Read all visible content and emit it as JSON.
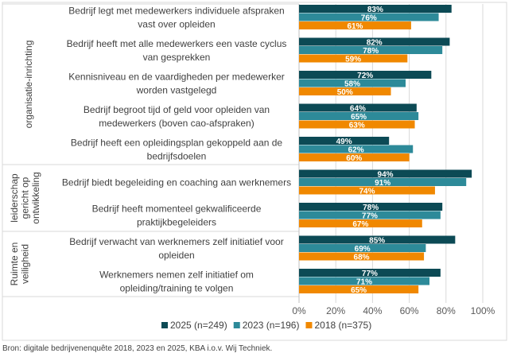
{
  "chart_data": {
    "type": "bar",
    "orientation": "horizontal",
    "groups": [
      {
        "label": "organisatie-inrichting",
        "items": [
          0,
          1,
          2,
          3,
          4
        ]
      },
      {
        "label_lines": [
          "leiderschap",
          "gericht op",
          "ontwikkeling"
        ],
        "label": "leiderschap gericht op ontwikkeling",
        "items": [
          5,
          6
        ]
      },
      {
        "label_lines": [
          "Ruimte en",
          "veiligheid"
        ],
        "label": "Ruimte en veiligheid",
        "items": [
          7,
          8
        ]
      }
    ],
    "categories": [
      [
        "Bedrijf legt met medewerkers individuele afspraken",
        "vast over opleiden"
      ],
      [
        "Bedrijf heeft met alle medewerkers een vaste cyclus",
        "van gesprekken"
      ],
      [
        "Kennisniveau en de vaardigheden per medewerker",
        "worden vastgelegd"
      ],
      [
        "Bedrijf begroot tijd of geld voor opleiden van",
        "medewerkers (boven cao-afspraken)"
      ],
      [
        "Bedrijf heeft een opleidingsplan gekoppeld aan de",
        "bedrijfsdoelen"
      ],
      [
        "Bedrijf biedt begeleiding en coaching aan werknemers"
      ],
      [
        "Bedrijf heeft momenteel gekwalificeerde",
        "praktijkbegeleiders"
      ],
      [
        "Bedrijf verwacht van werknemers zelf initiatief voor",
        "opleiden"
      ],
      [
        "Werknemers nemen zelf initiatief om",
        "opleiding/training te volgen"
      ]
    ],
    "series": [
      {
        "name": "2025 (n=249)",
        "color": "#0c4a55",
        "values": [
          83,
          82,
          72,
          64,
          49,
          94,
          78,
          85,
          77
        ]
      },
      {
        "name": "2023 (n=196)",
        "color": "#2d8a99",
        "values": [
          76,
          78,
          58,
          65,
          62,
          91,
          77,
          69,
          71
        ]
      },
      {
        "name": "2018 (n=375)",
        "color": "#f08800",
        "values": [
          61,
          59,
          50,
          63,
          60,
          74,
          67,
          68,
          65
        ]
      }
    ],
    "xlim": [
      0,
      100
    ],
    "xticks": [
      "0%",
      "20%",
      "40%",
      "60%",
      "80%",
      "100%"
    ],
    "grid": true,
    "legend": "bottom",
    "source": "Bron: digitale bedrijvenenquête 2018, 2023 en 2025, KBA i.o.v. Wij Techniek."
  }
}
